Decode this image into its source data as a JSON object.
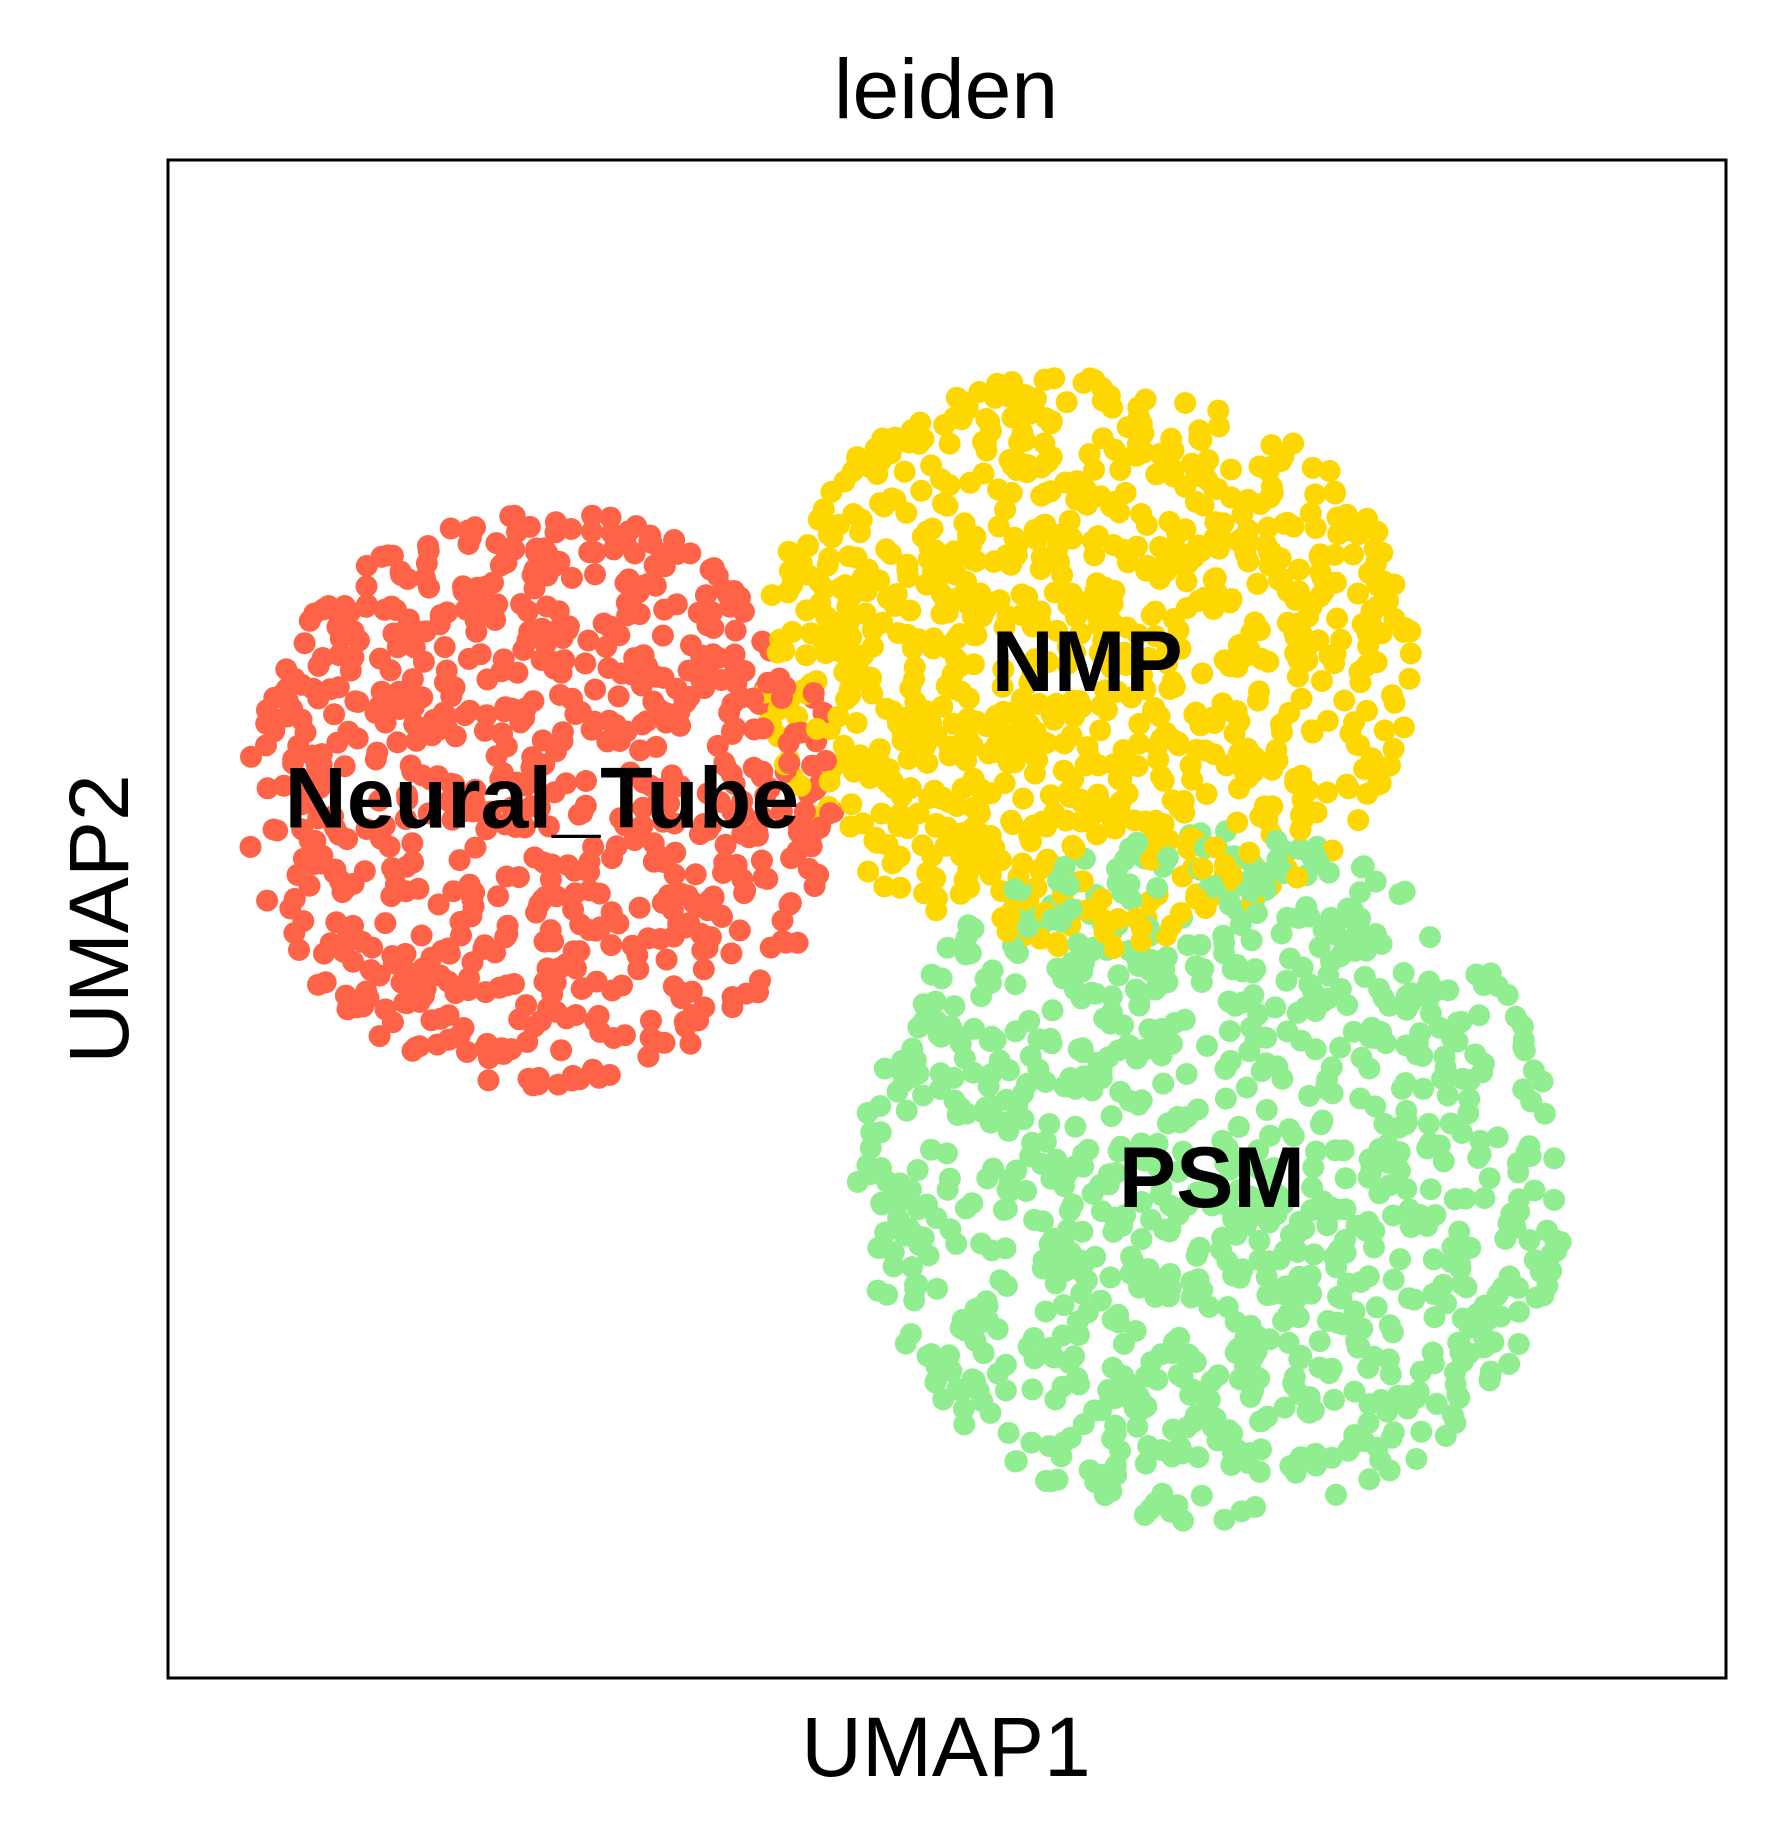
{
  "chart_data": {
    "type": "scatter",
    "title": "leiden",
    "xlabel": "UMAP1",
    "ylabel": "UMAP2",
    "xlim": [
      0,
      100
    ],
    "ylim": [
      0,
      100
    ],
    "ticks": "none",
    "grid": false,
    "legend": "on data",
    "series": [
      {
        "name": "Neural_Tube",
        "color": "#ff6347",
        "center": [
          24,
          58
        ],
        "spread": [
          10,
          10
        ],
        "n": 750,
        "label": "Neural_Tube"
      },
      {
        "name": "NMP",
        "color": "#ffd700",
        "center": [
          59,
          67
        ],
        "spread": [
          11,
          10
        ],
        "n": 950,
        "label": "NMP"
      },
      {
        "name": "PSM",
        "color": "#90ee90",
        "center": [
          67,
          33
        ],
        "spread": [
          12,
          12
        ],
        "n": 1000,
        "label": "PSM"
      }
    ]
  }
}
